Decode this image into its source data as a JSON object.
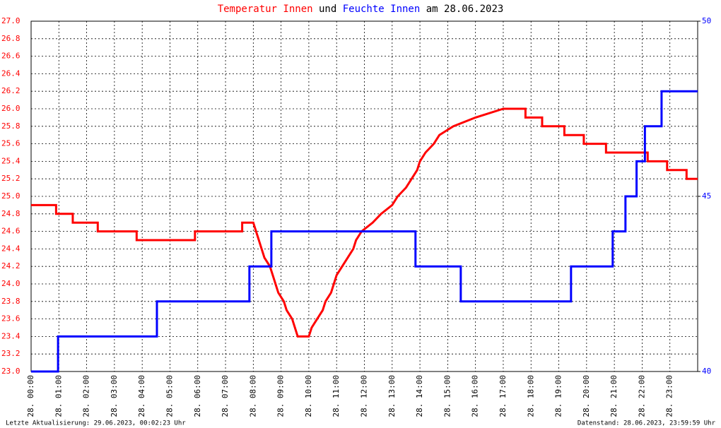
{
  "chart_data": {
    "type": "line",
    "title_parts": [
      "und",
      "am 28.06.2023"
    ],
    "footer_left": "Letzte Aktualisierung: 29.06.2023, 00:02:23 Uhr",
    "footer_right": "Datenstand: 28.06.2023, 23:59:59 Uhr",
    "grid": true,
    "xlim": [
      0,
      24
    ],
    "xticks": [
      {
        "value": 0,
        "label": "28. 00:00"
      },
      {
        "value": 1,
        "label": "28. 01:00"
      },
      {
        "value": 2,
        "label": "28. 02:00"
      },
      {
        "value": 3,
        "label": "28. 03:00"
      },
      {
        "value": 4,
        "label": "28. 04:00"
      },
      {
        "value": 5,
        "label": "28. 05:00"
      },
      {
        "value": 6,
        "label": "28. 06:00"
      },
      {
        "value": 7,
        "label": "28. 07:00"
      },
      {
        "value": 8,
        "label": "28. 08:00"
      },
      {
        "value": 9,
        "label": "28. 09:00"
      },
      {
        "value": 10,
        "label": "28. 10:00"
      },
      {
        "value": 11,
        "label": "28. 11:00"
      },
      {
        "value": 12,
        "label": "28. 12:00"
      },
      {
        "value": 13,
        "label": "28. 13:00"
      },
      {
        "value": 14,
        "label": "28. 14:00"
      },
      {
        "value": 15,
        "label": "28. 15:00"
      },
      {
        "value": 16,
        "label": "28. 16:00"
      },
      {
        "value": 17,
        "label": "28. 17:00"
      },
      {
        "value": 18,
        "label": "28. 18:00"
      },
      {
        "value": 19,
        "label": "28. 19:00"
      },
      {
        "value": 20,
        "label": "28. 20:00"
      },
      {
        "value": 21,
        "label": "28. 21:00"
      },
      {
        "value": 22,
        "label": "28. 22:00"
      },
      {
        "value": 23,
        "label": "28. 23:00"
      }
    ],
    "ylim": [
      23.0,
      27.0
    ],
    "yticks": [
      {
        "value": 23,
        "label": "23.0"
      },
      23.2,
      23.4,
      23.6,
      23.8,
      {
        "value": 24,
        "label": "24.0"
      },
      24.2,
      24.4,
      24.6,
      24.8,
      {
        "value": 25,
        "label": "25.0"
      },
      25.2,
      25.4,
      25.6,
      25.8,
      {
        "value": 26,
        "label": "26.0"
      },
      26.2,
      26.4,
      26.6,
      26.8,
      {
        "value": 27,
        "label": "27.0"
      }
    ],
    "y2lim": [
      40,
      50
    ],
    "y2ticks": [
      40,
      45,
      50
    ],
    "series": [
      {
        "name": "Temperatur Innen",
        "color": "#ff0000",
        "axis": "y",
        "x": [
          0,
          0.9,
          0.9,
          1.5,
          1.5,
          2.4,
          2.4,
          3.8,
          3.8,
          5.9,
          5.9,
          7.6,
          7.6,
          8.0,
          8.1,
          8.2,
          8.3,
          8.4,
          8.6,
          8.7,
          8.8,
          8.9,
          9.1,
          9.2,
          9.4,
          9.5,
          9.6,
          10.0,
          10.1,
          10.3,
          10.5,
          10.6,
          10.8,
          10.9,
          11.0,
          11.2,
          11.4,
          11.6,
          11.7,
          11.9,
          12.3,
          12.6,
          13.0,
          13.2,
          13.5,
          13.7,
          13.9,
          14.0,
          14.2,
          14.5,
          14.7,
          15.2,
          16.0,
          17.0,
          17.8,
          17.8,
          18.4,
          18.4,
          19.2,
          19.2,
          19.9,
          19.9,
          20.7,
          20.7,
          22.2,
          22.2,
          22.9,
          22.9,
          23.6,
          23.6,
          24
        ],
        "values": [
          24.9,
          24.9,
          24.8,
          24.8,
          24.7,
          24.7,
          24.6,
          24.6,
          24.5,
          24.5,
          24.6,
          24.6,
          24.7,
          24.7,
          24.6,
          24.5,
          24.4,
          24.3,
          24.2,
          24.1,
          24.0,
          23.9,
          23.8,
          23.7,
          23.6,
          23.5,
          23.4,
          23.4,
          23.5,
          23.6,
          23.7,
          23.8,
          23.9,
          24.0,
          24.1,
          24.2,
          24.3,
          24.4,
          24.5,
          24.6,
          24.7,
          24.8,
          24.9,
          25.0,
          25.1,
          25.2,
          25.3,
          25.4,
          25.5,
          25.6,
          25.7,
          25.8,
          25.9,
          26.0,
          26.0,
          25.9,
          25.9,
          25.8,
          25.8,
          25.7,
          25.7,
          25.6,
          25.6,
          25.5,
          25.5,
          25.4,
          25.4,
          25.3,
          25.3,
          25.2,
          25.2
        ]
      },
      {
        "name": "Feuchte Innen",
        "color": "#0000ff",
        "axis": "y2",
        "x": [
          0,
          0.97,
          0.97,
          4.53,
          4.53,
          7.86,
          7.86,
          8.65,
          8.65,
          13.84,
          13.84,
          15.47,
          15.47,
          19.44,
          19.44,
          20.94,
          20.94,
          21.4,
          21.4,
          21.8,
          21.8,
          22.1,
          22.1,
          22.7,
          22.7,
          24
        ],
        "values": [
          40,
          40,
          41,
          41,
          42,
          42,
          43,
          43,
          44,
          44,
          43,
          43,
          42,
          42,
          43,
          43,
          44,
          44,
          45,
          45,
          46,
          46,
          47,
          47,
          48,
          48
        ]
      }
    ]
  }
}
